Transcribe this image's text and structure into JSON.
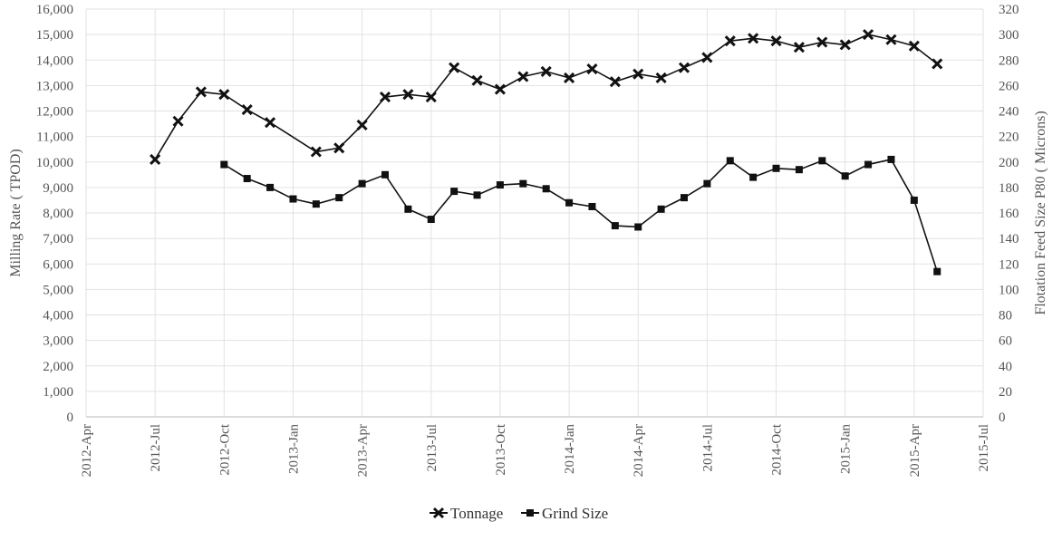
{
  "chart_data": {
    "type": "line",
    "title": "",
    "ylabel": "Milling Rate ( TPOD)",
    "y2label": "Flotation Feed Size P80 ( Microns)",
    "ylim": [
      0,
      16000
    ],
    "y2lim": [
      0,
      320
    ],
    "grid": true,
    "legend_position": "bottom",
    "y_ticks": [
      "0",
      "1,000",
      "2,000",
      "3,000",
      "4,000",
      "5,000",
      "6,000",
      "7,000",
      "8,000",
      "9,000",
      "10,000",
      "11,000",
      "12,000",
      "13,000",
      "14,000",
      "15,000",
      "16,000"
    ],
    "y2_ticks": [
      "0",
      "20",
      "40",
      "60",
      "80",
      "100",
      "120",
      "140",
      "160",
      "180",
      "200",
      "220",
      "240",
      "260",
      "280",
      "300",
      "320"
    ],
    "x_ticks": [
      "2012-Apr",
      "2012-Jul",
      "2012-Oct",
      "2013-Jan",
      "2013-Apr",
      "2013-Jul",
      "2013-Oct",
      "2014-Jan",
      "2014-Apr",
      "2014-Jul",
      "2014-Oct",
      "2015-Jan",
      "2015-Apr",
      "2015-Jul"
    ],
    "series": [
      {
        "name": "Tonnage",
        "axis": "left",
        "color": "#111111",
        "marker": "x",
        "points": [
          [
            "2012-07",
            10100
          ],
          [
            "2012-08",
            11600
          ],
          [
            "2012-09",
            12750
          ],
          [
            "2012-10",
            12650
          ],
          [
            "2012-11",
            12050
          ],
          [
            "2012-12",
            11550
          ],
          [
            "2013-02",
            10400
          ],
          [
            "2013-03",
            10550
          ],
          [
            "2013-04",
            11450
          ],
          [
            "2013-05",
            12550
          ],
          [
            "2013-06",
            12650
          ],
          [
            "2013-07",
            12550
          ],
          [
            "2013-08",
            13700
          ],
          [
            "2013-09",
            13200
          ],
          [
            "2013-10",
            12850
          ],
          [
            "2013-11",
            13350
          ],
          [
            "2013-12",
            13550
          ],
          [
            "2014-01",
            13300
          ],
          [
            "2014-02",
            13650
          ],
          [
            "2014-03",
            13150
          ],
          [
            "2014-04",
            13450
          ],
          [
            "2014-05",
            13300
          ],
          [
            "2014-06",
            13700
          ],
          [
            "2014-07",
            14100
          ],
          [
            "2014-08",
            14750
          ],
          [
            "2014-09",
            14850
          ],
          [
            "2014-10",
            14750
          ],
          [
            "2014-11",
            14500
          ],
          [
            "2014-12",
            14700
          ],
          [
            "2015-01",
            14600
          ],
          [
            "2015-02",
            15000
          ],
          [
            "2015-03",
            14800
          ],
          [
            "2015-04",
            14550
          ],
          [
            "2015-05",
            13850
          ]
        ]
      },
      {
        "name": "Grind Size",
        "axis": "right",
        "color": "#111111",
        "marker": "square",
        "points": [
          [
            "2012-10",
            198
          ],
          [
            "2012-11",
            187
          ],
          [
            "2012-12",
            180
          ],
          [
            "2013-01",
            171
          ],
          [
            "2013-02",
            167
          ],
          [
            "2013-03",
            172
          ],
          [
            "2013-04",
            183
          ],
          [
            "2013-05",
            190
          ],
          [
            "2013-06",
            163
          ],
          [
            "2013-07",
            155
          ],
          [
            "2013-08",
            177
          ],
          [
            "2013-09",
            174
          ],
          [
            "2013-10",
            182
          ],
          [
            "2013-11",
            183
          ],
          [
            "2013-12",
            179
          ],
          [
            "2014-01",
            168
          ],
          [
            "2014-02",
            165
          ],
          [
            "2014-03",
            150
          ],
          [
            "2014-04",
            149
          ],
          [
            "2014-05",
            163
          ],
          [
            "2014-06",
            172
          ],
          [
            "2014-07",
            183
          ],
          [
            "2014-08",
            201
          ],
          [
            "2014-09",
            188
          ],
          [
            "2014-10",
            195
          ],
          [
            "2014-11",
            194
          ],
          [
            "2014-12",
            201
          ],
          [
            "2015-01",
            189
          ],
          [
            "2015-02",
            198
          ],
          [
            "2015-03",
            202
          ],
          [
            "2015-04",
            170
          ],
          [
            "2015-05",
            114
          ]
        ]
      }
    ]
  }
}
